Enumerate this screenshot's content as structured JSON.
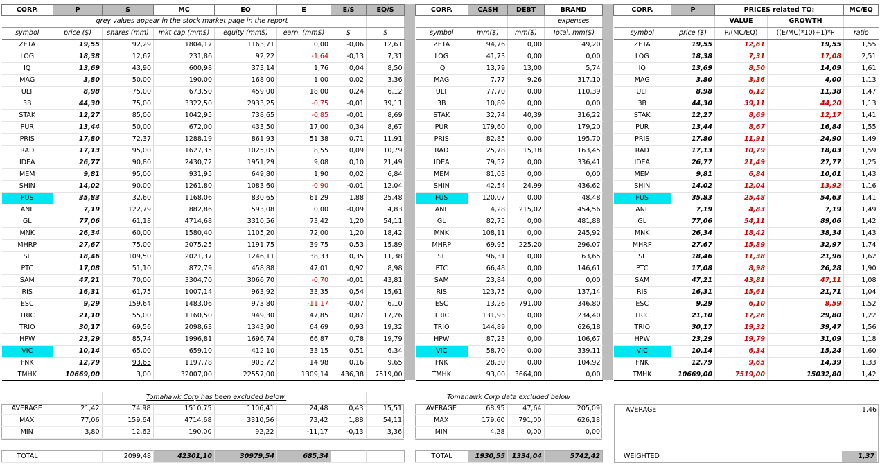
{
  "colors": {
    "grey_header": "#bdbdbd",
    "negative_red": "#d00000",
    "highlight_cyan": "#00e5ef"
  },
  "section1": {
    "headers": [
      "CORP.",
      "P",
      "S",
      "MC",
      "EQ",
      "E",
      "E/S",
      "EQ/S"
    ],
    "note": "grey values appear in the stock market page in the report",
    "units": [
      "symbol",
      "price ($)",
      "shares (mm)",
      "mkt cap.(mm$)",
      "equity (mm$)",
      "earn. (mm$)",
      "$",
      "$"
    ]
  },
  "section2": {
    "headers": [
      "CORP.",
      "CASH",
      "DEBT",
      "BRAND"
    ],
    "note": "expenses",
    "units": [
      "symbol",
      "mm($)",
      "mm($)",
      "Total, mm($)"
    ]
  },
  "section3": {
    "headers": [
      "CORP.",
      "P",
      "PRICES related TO:",
      "MC/EQ"
    ],
    "sub": [
      "VALUE",
      "GROWTH"
    ],
    "units": [
      "symbol",
      "price ($)",
      "P/(MC/EQ)",
      "((E/MC)*10)+1)*P",
      "ratio"
    ]
  },
  "rows": [
    {
      "sym": "ZETA",
      "p": "19,55",
      "s": "92,29",
      "mc": "1804,17",
      "eq": "1163,71",
      "e": "0,00",
      "es": "-0,06",
      "eqs": "12,61",
      "cash": "94,76",
      "debt": "0,00",
      "brand": "49,20",
      "val": "12,61",
      "gro": "19,55",
      "ratio": "1,55"
    },
    {
      "sym": "LOG",
      "p": "18,38",
      "s": "12,62",
      "mc": "231,86",
      "eq": "92,22",
      "e": "-1,64",
      "es": "-0,13",
      "eqs": "7,31",
      "cash": "41,73",
      "debt": "0,00",
      "brand": "0,00",
      "val": "7,31",
      "gro": "17,08",
      "ratio": "2,51"
    },
    {
      "sym": "IQ",
      "p": "13,69",
      "s": "43,90",
      "mc": "600,98",
      "eq": "373,14",
      "e": "1,76",
      "es": "0,04",
      "eqs": "8,50",
      "cash": "13,79",
      "debt": "13,00",
      "brand": "5,74",
      "val": "8,50",
      "gro": "14,09",
      "ratio": "1,61"
    },
    {
      "sym": "MAG",
      "p": "3,80",
      "s": "50,00",
      "mc": "190,00",
      "eq": "168,00",
      "e": "1,00",
      "es": "0,02",
      "eqs": "3,36",
      "cash": "7,77",
      "debt": "9,26",
      "brand": "317,10",
      "val": "3,36",
      "gro": "4,00",
      "ratio": "1,13"
    },
    {
      "sym": "ULT",
      "p": "8,98",
      "s": "75,00",
      "mc": "673,50",
      "eq": "459,00",
      "e": "18,00",
      "es": "0,24",
      "eqs": "6,12",
      "cash": "77,70",
      "debt": "0,00",
      "brand": "110,39",
      "val": "6,12",
      "gro": "11,38",
      "ratio": "1,47"
    },
    {
      "sym": "3B",
      "p": "44,30",
      "s": "75,00",
      "mc": "3322,50",
      "eq": "2933,25",
      "e": "-0,75",
      "es": "-0,01",
      "eqs": "39,11",
      "cash": "10,89",
      "debt": "0,00",
      "brand": "0,00",
      "val": "39,11",
      "gro": "44,20",
      "ratio": "1,13"
    },
    {
      "sym": "STAK",
      "p": "12,27",
      "s": "85,00",
      "mc": "1042,95",
      "eq": "738,65",
      "e": "-0,85",
      "es": "-0,01",
      "eqs": "8,69",
      "cash": "32,74",
      "debt": "40,39",
      "brand": "316,22",
      "val": "8,69",
      "gro": "12,17",
      "ratio": "1,41"
    },
    {
      "sym": "PUR",
      "p": "13,44",
      "s": "50,00",
      "mc": "672,00",
      "eq": "433,50",
      "e": "17,00",
      "es": "0,34",
      "eqs": "8,67",
      "cash": "179,60",
      "debt": "0,00",
      "brand": "179,20",
      "val": "8,67",
      "gro": "16,84",
      "ratio": "1,55"
    },
    {
      "sym": "PRIS",
      "p": "17,80",
      "s": "72,37",
      "mc": "1288,19",
      "eq": "861,93",
      "e": "51,38",
      "es": "0,71",
      "eqs": "11,91",
      "cash": "82,85",
      "debt": "0,00",
      "brand": "195,70",
      "val": "11,91",
      "gro": "24,90",
      "ratio": "1,49"
    },
    {
      "sym": "RAD",
      "p": "17,13",
      "s": "95,00",
      "mc": "1627,35",
      "eq": "1025,05",
      "e": "8,55",
      "es": "0,09",
      "eqs": "10,79",
      "cash": "25,78",
      "debt": "15,18",
      "brand": "163,45",
      "val": "10,79",
      "gro": "18,03",
      "ratio": "1,59"
    },
    {
      "sym": "IDEA",
      "p": "26,77",
      "s": "90,80",
      "mc": "2430,72",
      "eq": "1951,29",
      "e": "9,08",
      "es": "0,10",
      "eqs": "21,49",
      "cash": "79,52",
      "debt": "0,00",
      "brand": "336,41",
      "val": "21,49",
      "gro": "27,77",
      "ratio": "1,25"
    },
    {
      "sym": "MEM",
      "p": "9,81",
      "s": "95,00",
      "mc": "931,95",
      "eq": "649,80",
      "e": "1,90",
      "es": "0,02",
      "eqs": "6,84",
      "cash": "81,03",
      "debt": "0,00",
      "brand": "0,00",
      "val": "6,84",
      "gro": "10,01",
      "ratio": "1,43"
    },
    {
      "sym": "SHIN",
      "p": "14,02",
      "s": "90,00",
      "mc": "1261,80",
      "eq": "1083,60",
      "e": "-0,90",
      "es": "-0,01",
      "eqs": "12,04",
      "cash": "42,54",
      "debt": "24,99",
      "brand": "436,62",
      "val": "12,04",
      "gro": "13,92",
      "ratio": "1,16"
    },
    {
      "sym": "FUS",
      "p": "35,83",
      "s": "32,60",
      "mc": "1168,06",
      "eq": "830,65",
      "e": "61,29",
      "es": "1,88",
      "eqs": "25,48",
      "cash": "120,07",
      "debt": "0,00",
      "brand": "48,48",
      "val": "25,48",
      "gro": "54,63",
      "ratio": "1,41",
      "hl": true
    },
    {
      "sym": "ANL",
      "p": "7,19",
      "s": "122,79",
      "mc": "882,86",
      "eq": "593,08",
      "e": "0,00",
      "es": "-0,09",
      "eqs": "4,83",
      "cash": "4,28",
      "debt": "215,02",
      "brand": "454,56",
      "val": "4,83",
      "gro": "7,19",
      "ratio": "1,49"
    },
    {
      "sym": "GL",
      "p": "77,06",
      "s": "61,18",
      "mc": "4714,68",
      "eq": "3310,56",
      "e": "73,42",
      "es": "1,20",
      "eqs": "54,11",
      "cash": "82,75",
      "debt": "0,00",
      "brand": "481,88",
      "val": "54,11",
      "gro": "89,06",
      "ratio": "1,42"
    },
    {
      "sym": "MNK",
      "p": "26,34",
      "s": "60,00",
      "mc": "1580,40",
      "eq": "1105,20",
      "e": "72,00",
      "es": "1,20",
      "eqs": "18,42",
      "cash": "108,11",
      "debt": "0,00",
      "brand": "245,92",
      "val": "18,42",
      "gro": "38,34",
      "ratio": "1,43"
    },
    {
      "sym": "MHRP",
      "p": "27,67",
      "s": "75,00",
      "mc": "2075,25",
      "eq": "1191,75",
      "e": "39,75",
      "es": "0,53",
      "eqs": "15,89",
      "cash": "69,95",
      "debt": "225,20",
      "brand": "296,07",
      "val": "15,89",
      "gro": "32,97",
      "ratio": "1,74"
    },
    {
      "sym": "SL",
      "p": "18,46",
      "s": "109,50",
      "mc": "2021,37",
      "eq": "1246,11",
      "e": "38,33",
      "es": "0,35",
      "eqs": "11,38",
      "cash": "96,31",
      "debt": "0,00",
      "brand": "63,65",
      "val": "11,38",
      "gro": "21,96",
      "ratio": "1,62"
    },
    {
      "sym": "PTC",
      "p": "17,08",
      "s": "51,10",
      "mc": "872,79",
      "eq": "458,88",
      "e": "47,01",
      "es": "0,92",
      "eqs": "8,98",
      "cash": "66,48",
      "debt": "0,00",
      "brand": "146,61",
      "val": "8,98",
      "gro": "26,28",
      "ratio": "1,90"
    },
    {
      "sym": "SAM",
      "p": "47,21",
      "s": "70,00",
      "mc": "3304,70",
      "eq": "3066,70",
      "e": "-0,70",
      "es": "-0,01",
      "eqs": "43,81",
      "cash": "23,84",
      "debt": "0,00",
      "brand": "0,00",
      "val": "43,81",
      "gro": "47,11",
      "ratio": "1,08"
    },
    {
      "sym": "RIS",
      "p": "16,31",
      "s": "61,75",
      "mc": "1007,14",
      "eq": "963,92",
      "e": "33,35",
      "es": "0,54",
      "eqs": "15,61",
      "cash": "123,75",
      "debt": "0,00",
      "brand": "137,14",
      "val": "15,61",
      "gro": "21,71",
      "ratio": "1,04"
    },
    {
      "sym": "ESC",
      "p": "9,29",
      "s": "159,64",
      "mc": "1483,06",
      "eq": "973,80",
      "e": "-11,17",
      "es": "-0,07",
      "eqs": "6,10",
      "cash": "13,26",
      "debt": "791,00",
      "brand": "346,80",
      "val": "6,10",
      "gro": "8,59",
      "ratio": "1,52"
    },
    {
      "sym": "TRIC",
      "p": "21,10",
      "s": "55,00",
      "mc": "1160,50",
      "eq": "949,30",
      "e": "47,85",
      "es": "0,87",
      "eqs": "17,26",
      "cash": "131,93",
      "debt": "0,00",
      "brand": "234,40",
      "val": "17,26",
      "gro": "29,80",
      "ratio": "1,22"
    },
    {
      "sym": "TRIO",
      "p": "30,17",
      "s": "69,56",
      "mc": "2098,63",
      "eq": "1343,90",
      "e": "64,69",
      "es": "0,93",
      "eqs": "19,32",
      "cash": "144,89",
      "debt": "0,00",
      "brand": "626,18",
      "val": "19,32",
      "gro": "39,47",
      "ratio": "1,56"
    },
    {
      "sym": "HPW",
      "p": "23,29",
      "s": "85,74",
      "mc": "1996,81",
      "eq": "1696,74",
      "e": "66,87",
      "es": "0,78",
      "eqs": "19,79",
      "cash": "87,23",
      "debt": "0,00",
      "brand": "106,67",
      "val": "19,79",
      "gro": "31,09",
      "ratio": "1,18"
    },
    {
      "sym": "VIC",
      "p": "10,14",
      "s": "65,00",
      "mc": "659,10",
      "eq": "412,10",
      "e": "33,15",
      "es": "0,51",
      "eqs": "6,34",
      "cash": "58,70",
      "debt": "0,00",
      "brand": "339,11",
      "val": "6,34",
      "gro": "15,24",
      "ratio": "1,60",
      "hl": true
    },
    {
      "sym": "FNK",
      "p": "12,79",
      "s": "93,65",
      "mc": "1197,78",
      "eq": "903,72",
      "e": "14,98",
      "es": "0,16",
      "eqs": "9,65",
      "cash": "28,30",
      "debt": "0,00",
      "brand": "104,92",
      "val": "9,65",
      "gro": "14,39",
      "ratio": "1,33",
      "ul": true
    }
  ],
  "total_row": {
    "sym": "TMHK",
    "p": "10669,00",
    "s": "3,00",
    "mc": "32007,00",
    "eq": "22557,00",
    "e": "1309,14",
    "es": "436,38",
    "eqs": "7519,00",
    "cash": "93,00",
    "debt": "3664,00",
    "brand": "0,00",
    "val": "7519,00",
    "gro": "15032,80",
    "ratio": "1,42"
  },
  "summary1": {
    "note": "Tomahawk Corp has been excluded below.",
    "average": {
      "label": "AVERAGE",
      "p": "21,42",
      "s": "74,98",
      "mc": "1510,75",
      "eq": "1106,41",
      "e": "24,48",
      "es": "0,43",
      "eqs": "15,51"
    },
    "max": {
      "label": "MAX",
      "p": "77,06",
      "s": "159,64",
      "mc": "4714,68",
      "eq": "3310,56",
      "e": "73,42",
      "es": "1,88",
      "eqs": "54,11"
    },
    "min": {
      "label": "MIN",
      "p": "3,80",
      "s": "12,62",
      "mc": "190,00",
      "eq": "92,22",
      "e": "-11,17",
      "es": "-0,13",
      "eqs": "3,36"
    },
    "total": {
      "label": "TOTAL",
      "s": "2099,48",
      "mc": "42301,10",
      "eq": "30979,54",
      "e": "685,34"
    }
  },
  "summary2": {
    "note": "Tomahawk Corp data excluded below",
    "average": {
      "label": "AVERAGE",
      "cash": "68,95",
      "debt": "47,64",
      "brand": "205,09"
    },
    "max": {
      "label": "MAX",
      "cash": "179,60",
      "debt": "791,00",
      "brand": "626,18"
    },
    "min": {
      "label": "MIN",
      "cash": "4,28",
      "debt": "0,00",
      "brand": "0,00"
    },
    "total": {
      "label": "TOTAL",
      "cash": "1930,55",
      "debt": "1334,04",
      "brand": "5742,42"
    }
  },
  "summary3": {
    "average_label": "AVERAGE",
    "average_value": "1,46",
    "weighted_label": "WEIGHTED",
    "weighted_value": "1,37"
  }
}
